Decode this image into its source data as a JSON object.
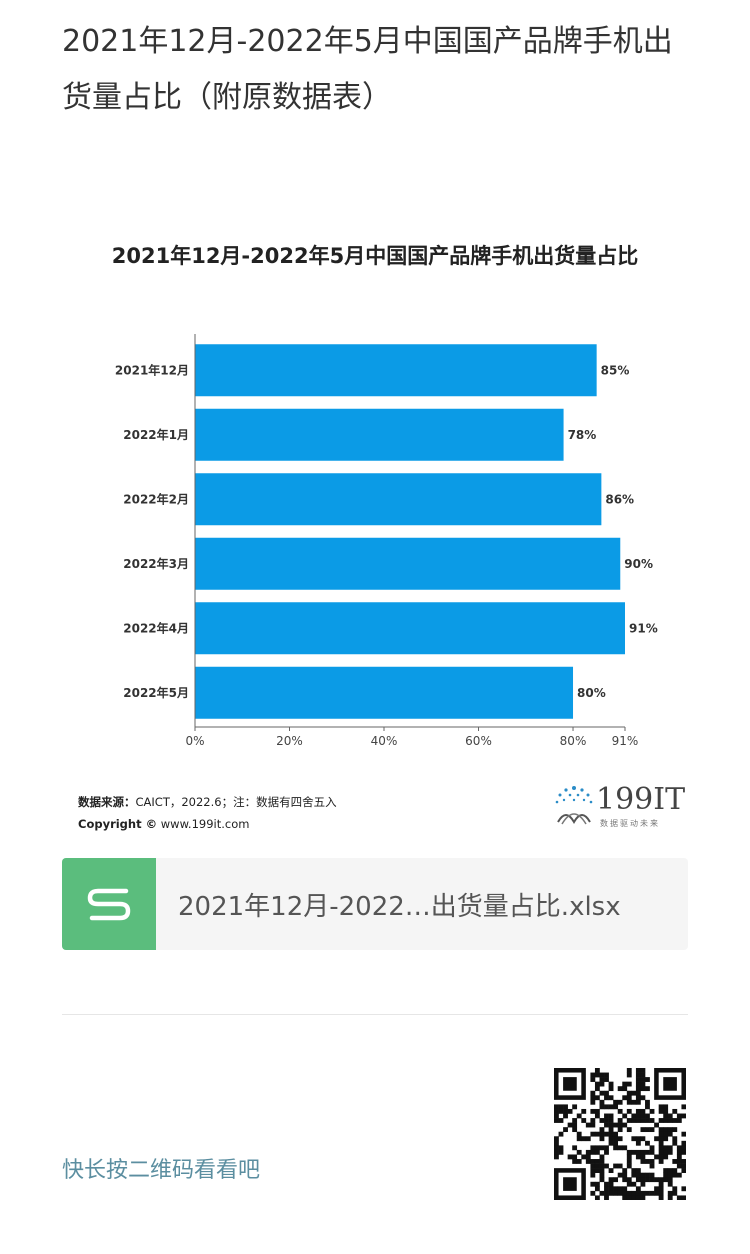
{
  "article": {
    "title": "2021年12月-2022年5月中国国产品牌手机出货量占比（附原数据表）"
  },
  "chart_data": {
    "type": "bar",
    "orientation": "horizontal",
    "title": "2021年12月-2022年5月中国国产品牌手机出货量占比",
    "categories": [
      "2021年12月",
      "2022年1月",
      "2022年2月",
      "2022年3月",
      "2022年4月",
      "2022年5月"
    ],
    "values": [
      85,
      78,
      86,
      90,
      91,
      80
    ],
    "value_labels": [
      "85%",
      "78%",
      "86%",
      "90%",
      "91%",
      "80%"
    ],
    "xlim": [
      0,
      91
    ],
    "x_ticks": [
      0,
      20,
      40,
      60,
      80,
      91
    ],
    "x_tick_labels": [
      "0%",
      "20%",
      "40%",
      "60%",
      "80%",
      "91%"
    ],
    "bar_color": "#0b9be6",
    "grid": false
  },
  "source": {
    "label": "数据来源：",
    "text": "CAICT，2022.6；注：数据有四舍五入",
    "copyright_label": "Copyright ©",
    "copyright_site": "www.199it.com"
  },
  "logo": {
    "name": "199IT",
    "slogan": "数据驱动未来"
  },
  "attachment": {
    "icon": "spreadsheet-icon",
    "icon_color": "#5bbd7d",
    "file_name": "2021年12月-2022…出货量占比.xlsx"
  },
  "qr": {
    "hint": "快长按二维码看看吧",
    "icon": "qr-code-icon"
  }
}
